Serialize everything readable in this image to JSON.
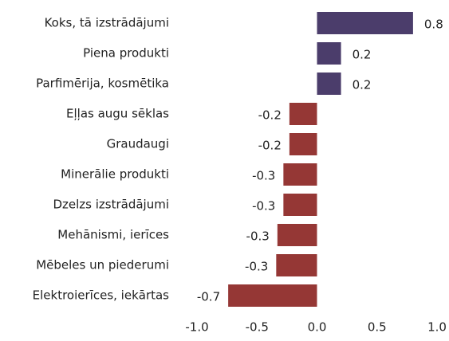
{
  "chart_data": {
    "type": "hbar",
    "categories": [
      "Koks, tā izstrādājumi",
      "Piena produkti",
      "Parfimērija, kosmētika",
      "Eļļas augu sēklas",
      "Graudaugi",
      "Minerālie produkti",
      "Dzelzs izstrādājumi",
      "Mehānismi, ierīces",
      "Mēbeles un piederumi",
      "Elektroierīces, iekārtas"
    ],
    "values": [
      0.8,
      0.2,
      0.2,
      -0.23,
      -0.23,
      -0.28,
      -0.28,
      -0.33,
      -0.34,
      -0.74
    ],
    "value_labels": [
      "0.8",
      "0.2",
      "0.2",
      "-0.2",
      "-0.2",
      "-0.3",
      "-0.3",
      "-0.3",
      "-0.3",
      "-0.7"
    ],
    "positive_color": "#4b3d6b",
    "negative_color": "#953735",
    "xlim": [
      -1.0,
      1.0
    ],
    "xticks": [
      {
        "value": -1.0,
        "label": "-1.0"
      },
      -0.5,
      {
        "value": 0,
        "label": "0.0"
      },
      0.5,
      {
        "value": 1.0,
        "label": "1.0"
      }
    ],
    "grid": false
  }
}
